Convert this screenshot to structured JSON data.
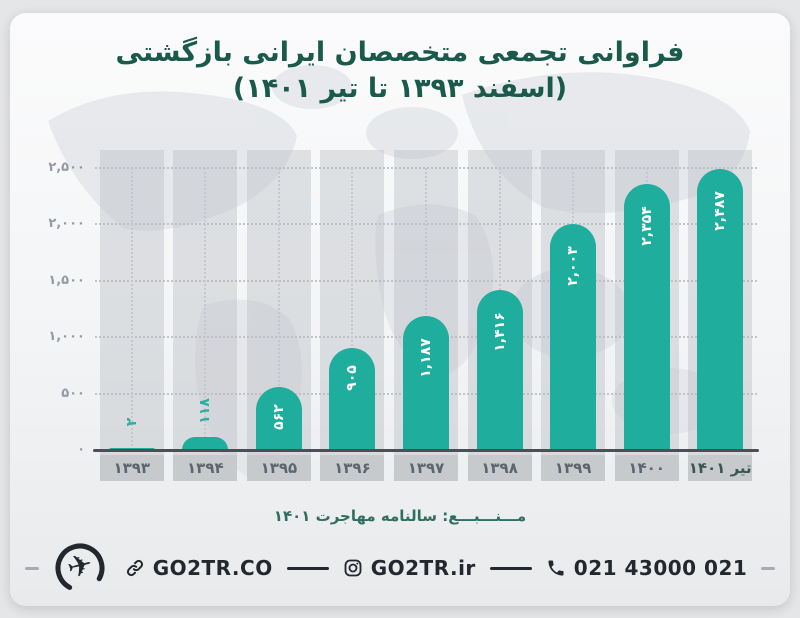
{
  "title": {
    "line1": "فراوانی تجمعی متخصصان ایرانی بازگشتی",
    "line2": "(اسفند ۱۳۹۳ تا تیر ۱۴۰۱)"
  },
  "chart_data": {
    "type": "bar",
    "title": "فراوانی تجمعی متخصصان ایرانی بازگشتی (اسفند ۱۳۹۳ تا تیر ۱۴۰۱)",
    "categories": [
      "۱۳۹۳",
      "۱۳۹۴",
      "۱۳۹۵",
      "۱۳۹۶",
      "۱۳۹۷",
      "۱۳۹۸",
      "۱۳۹۹",
      "۱۴۰۰",
      "تیر ۱۴۰۱"
    ],
    "categories_latin": [
      "1393",
      "1394",
      "1395",
      "1396",
      "1397",
      "1398",
      "1399",
      "1400",
      "Tir 1401"
    ],
    "values": [
      2,
      118,
      562,
      905,
      1187,
      1416,
      2003,
      2354,
      2487
    ],
    "value_labels": [
      "۲",
      "۱۱۸",
      "۵۶۲",
      "۹۰۵",
      "۱,۱۸۷",
      "۱,۴۱۶",
      "۲,۰۰۳",
      "۲,۳۵۴",
      "۲,۴۸۷"
    ],
    "y_ticks": [
      0,
      500,
      1000,
      1500,
      2000,
      2500
    ],
    "y_tick_labels": [
      "۰",
      "۵۰۰",
      "۱,۰۰۰",
      "۱,۵۰۰",
      "۲,۰۰۰",
      "۲,۵۰۰"
    ],
    "ylim": [
      0,
      2500
    ],
    "xlabel": "",
    "ylabel": "",
    "legend": "none",
    "grid": "dotted horizontal gridlines + dotted vertical column guides",
    "bar_color": "#1fad9d",
    "value_label_color_inside": "#ffffff",
    "value_label_color_outside": "#28b0a0",
    "last_category_label_color": "#3a564e"
  },
  "source": {
    "label": "مـــنـــبـــع: سالنامه مهاجرت ۱۴۰۱"
  },
  "footer": {
    "website": "GO2TR.CO",
    "instagram": "GO2TR.ir",
    "phone": "021 43000 021",
    "icons": {
      "logo": "go2tr-logo",
      "website": "link-icon",
      "instagram": "instagram-icon",
      "phone": "phone-icon"
    }
  },
  "colors": {
    "title_green": "#1a5a4b",
    "bar_teal": "#1fad9d",
    "axis_dark": "#4b5056",
    "chip_gray": "#c7cacd",
    "footer_dark": "#23282e"
  }
}
